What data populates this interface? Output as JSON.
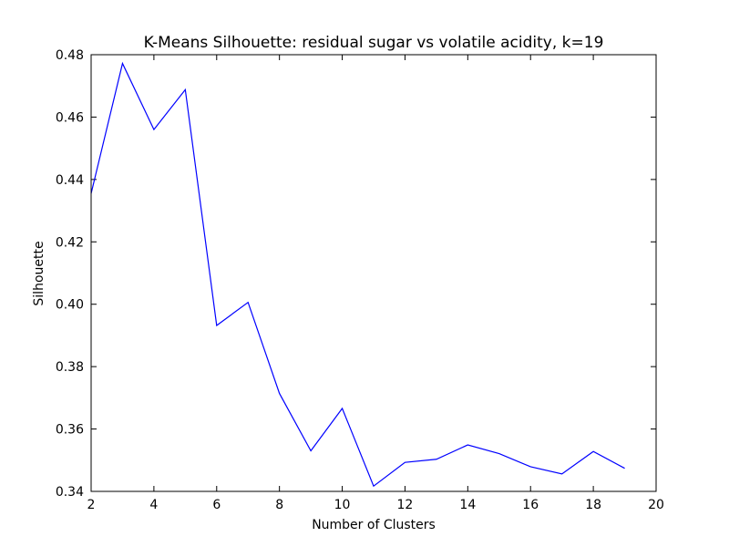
{
  "chart_data": {
    "type": "line",
    "title": "K-Means Silhouette: residual sugar vs volatile acidity, k=19",
    "xlabel": "Number of Clusters",
    "ylabel": "Silhouette",
    "xlim": [
      2,
      20
    ],
    "ylim": [
      0.34,
      0.48
    ],
    "xticks": [
      "2",
      "4",
      "6",
      "8",
      "10",
      "12",
      "14",
      "16",
      "18",
      "20"
    ],
    "yticks": [
      "0.34",
      "0.36",
      "0.38",
      "0.40",
      "0.42",
      "0.44",
      "0.46",
      "0.48"
    ],
    "grid": false,
    "series": [
      {
        "color": "#0000ff",
        "x": [
          2,
          3,
          4,
          5,
          6,
          7,
          8,
          9,
          10,
          11,
          12,
          13,
          14,
          15,
          16,
          17,
          18,
          19
        ],
        "values": [
          0.4355,
          0.4772,
          0.456,
          0.4688,
          0.3932,
          0.4006,
          0.3714,
          0.353,
          0.3666,
          0.3417,
          0.3493,
          0.3503,
          0.3549,
          0.3521,
          0.3479,
          0.3456,
          0.3528,
          0.3474
        ]
      }
    ]
  }
}
